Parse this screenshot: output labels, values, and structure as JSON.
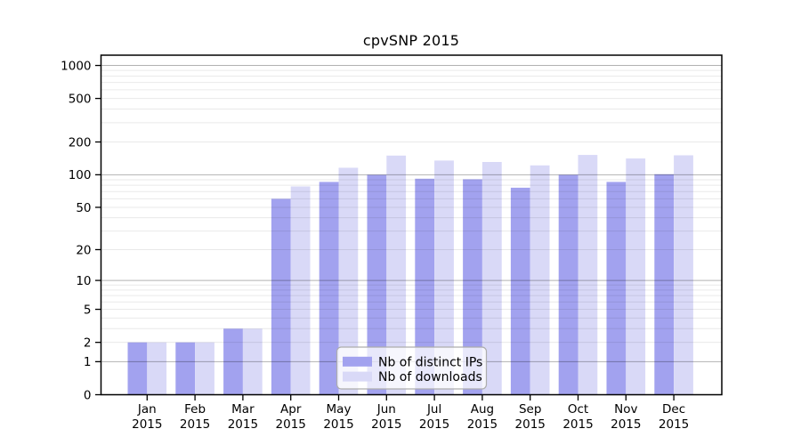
{
  "chart_data": {
    "type": "bar",
    "title": "cpvSNP 2015",
    "categories": [
      "Jan",
      "Feb",
      "Mar",
      "Apr",
      "May",
      "Jun",
      "Jul",
      "Aug",
      "Sep",
      "Oct",
      "Nov",
      "Dec"
    ],
    "category_year": "2015",
    "series": [
      {
        "name": "Nb of distinct IPs",
        "key": "ips",
        "color": "#a2a2ef",
        "values": [
          2,
          2,
          3,
          60,
          86,
          100,
          92,
          91,
          76,
          100,
          86,
          101
        ]
      },
      {
        "name": "Nb of downloads",
        "key": "downloads",
        "color": "#d9d9f7",
        "values": [
          2,
          2,
          3,
          78,
          116,
          150,
          135,
          131,
          122,
          152,
          141,
          151
        ]
      }
    ],
    "xlabel": "",
    "ylabel": "",
    "y_ticks": [
      0,
      1,
      2,
      5,
      10,
      20,
      50,
      100,
      200,
      500,
      1000
    ],
    "y_scale": "log10(v+1)",
    "ylim": [
      0,
      1200
    ],
    "grid": true,
    "legend_position": "bottom-center",
    "style": {
      "background": "#ffffff",
      "axis_color": "#000000",
      "grid_minor_color": "rgba(0,0,0,0.085)",
      "grid_major_color": "rgba(0,0,0,0.30)",
      "legend_fill": "rgba(255,255,255,0.75)",
      "legend_border": "#adadad"
    }
  }
}
